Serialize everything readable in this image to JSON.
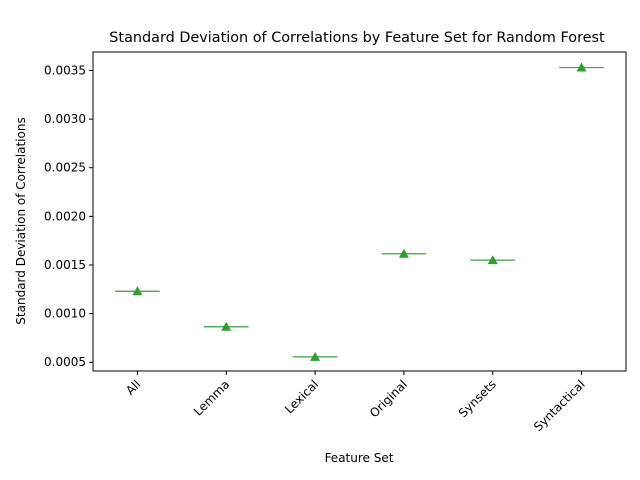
{
  "chart_data": {
    "type": "box",
    "title": "Standard Deviation of Correlations by Feature Set for Random Forest",
    "xlabel": "Feature Set",
    "ylabel": "Standard Deviation of Correlations",
    "categories": [
      "All",
      "Lemma",
      "Lexical",
      "Original",
      "Synsets",
      "Syntactical"
    ],
    "values": [
      0.00123,
      0.000865,
      0.000555,
      0.001615,
      0.00155,
      0.00353
    ],
    "ylim": [
      0.00041,
      0.00369
    ],
    "yticks": [
      0.0005,
      0.001,
      0.0015,
      0.002,
      0.0025,
      0.003,
      0.0035
    ],
    "ytick_labels": [
      "0.0005",
      "0.0010",
      "0.0015",
      "0.0020",
      "0.0025",
      "0.0030",
      "0.0035"
    ],
    "xtick_rotation": 45,
    "grid": false,
    "legend": "none",
    "mean_marker": "triangle",
    "colors": {
      "box_line": "#d98a3a",
      "median": "#3aa35a",
      "mean_marker": "#2ca02c",
      "axes": "#000000"
    }
  }
}
